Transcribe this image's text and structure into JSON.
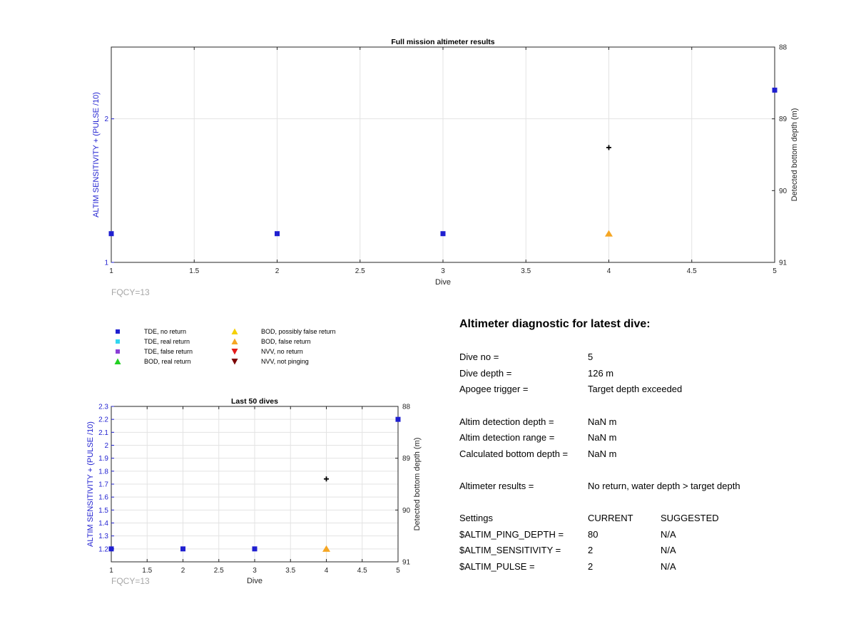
{
  "chart_data": [
    {
      "type": "scatter",
      "title": "Full mission altimeter results",
      "xlabel": "Dive",
      "ylabel_left": "ALTIM SENSITIVITY + (PULSE /10)",
      "ylabel_right": "Detected bottom depth (m)",
      "xlim": [
        1,
        5
      ],
      "ylim_left": [
        1,
        2.5
      ],
      "ylim_right": [
        88,
        91
      ],
      "right_axis_reversed": true,
      "x_ticks": [
        "1",
        "1.5",
        "2",
        "2.5",
        "3",
        "3.5",
        "4",
        "4.5",
        "5"
      ],
      "y_ticks_left": [
        "1",
        "2"
      ],
      "y_ticks_right": [
        "88",
        "89",
        "90",
        "91"
      ],
      "grid": true,
      "annotation": "FQCY=13",
      "series": [
        {
          "name": "TDE, no return",
          "marker": "square",
          "color": "#1f1fd0",
          "x": [
            1,
            2,
            3,
            5
          ],
          "y": [
            1.2,
            1.2,
            1.2,
            2.2
          ]
        },
        {
          "name": "BOD, false return",
          "marker": "triangle-up",
          "color": "#f5a623",
          "x": [
            4
          ],
          "y": [
            1.2
          ]
        },
        {
          "marker": "plus",
          "color": "#000000",
          "axis": "right",
          "x": [
            4
          ],
          "y": [
            89.4
          ]
        }
      ]
    },
    {
      "type": "scatter",
      "title": "Last 50 dives",
      "xlabel": "Dive",
      "ylabel_left": "ALTIM SENSITIVITY + (PULSE /10)",
      "ylabel_right": "Detected bottom depth (m)",
      "xlim": [
        1,
        5
      ],
      "ylim_left": [
        1.1,
        2.3
      ],
      "ylim_right": [
        88,
        91
      ],
      "right_axis_reversed": true,
      "x_ticks": [
        "1",
        "1.5",
        "2",
        "2.5",
        "3",
        "3.5",
        "4",
        "4.5",
        "5"
      ],
      "y_ticks_left": [
        "1.2",
        "1.3",
        "1.4",
        "1.5",
        "1.6",
        "1.7",
        "1.8",
        "1.9",
        "2",
        "2.1",
        "2.2",
        "2.3"
      ],
      "y_ticks_right": [
        "88",
        "89",
        "90",
        "91"
      ],
      "grid": true,
      "annotation": "FQCY=13",
      "series": [
        {
          "name": "TDE, no return",
          "marker": "square",
          "color": "#1f1fd0",
          "x": [
            1,
            2,
            3,
            5
          ],
          "y": [
            1.2,
            1.2,
            1.2,
            2.2
          ]
        },
        {
          "name": "BOD, false return",
          "marker": "triangle-up",
          "color": "#f5a623",
          "x": [
            4
          ],
          "y": [
            1.2
          ]
        },
        {
          "marker": "plus",
          "color": "#000000",
          "axis": "right",
          "x": [
            4
          ],
          "y": [
            89.4
          ]
        }
      ]
    }
  ],
  "legend": {
    "items": [
      {
        "label": "TDE, no return",
        "marker": "square",
        "color": "#1f1fd0"
      },
      {
        "label": "TDE, real return",
        "marker": "square",
        "color": "#33d6f0"
      },
      {
        "label": "TDE, false return",
        "marker": "square",
        "color": "#8b3fd6"
      },
      {
        "label": "BOD, real return",
        "marker": "triangle-up",
        "color": "#22d022"
      },
      {
        "label": "BOD, possibly false return",
        "marker": "triangle-up",
        "color": "#f5d000"
      },
      {
        "label": "BOD, false return",
        "marker": "triangle-up",
        "color": "#f5a623"
      },
      {
        "label": "NVV, no return",
        "marker": "triangle-down",
        "color": "#e31a1a"
      },
      {
        "label": "NVV, not pinging",
        "marker": "triangle-down",
        "color": "#7a0000"
      }
    ]
  },
  "diagnostic": {
    "title": "Altimeter diagnostic for latest dive:",
    "dive_no_label": "Dive no =",
    "dive_no": "5",
    "dive_depth_label": "Dive depth =",
    "dive_depth": "126 m",
    "apogee_label": "Apogee trigger =",
    "apogee": "Target depth exceeded",
    "detection_depth_label": "Altim detection depth =",
    "detection_depth": "NaN m",
    "detection_range_label": "Altim detection range =",
    "detection_range": "NaN m",
    "bottom_depth_label": "Calculated bottom depth =",
    "bottom_depth": "NaN m",
    "results_label": "Altimeter results =",
    "results": "No return, water depth > target depth",
    "settings_label": "Settings",
    "current_label": "CURRENT",
    "suggested_label": "SUGGESTED",
    "ping_depth_label": "$ALTIM_PING_DEPTH =",
    "ping_depth_current": "80",
    "ping_depth_suggested": "N/A",
    "sensitivity_label": "$ALTIM_SENSITIVITY =",
    "sensitivity_current": "2",
    "sensitivity_suggested": "N/A",
    "pulse_label": "$ALTIM_PULSE =",
    "pulse_current": "2",
    "pulse_suggested": "N/A"
  }
}
